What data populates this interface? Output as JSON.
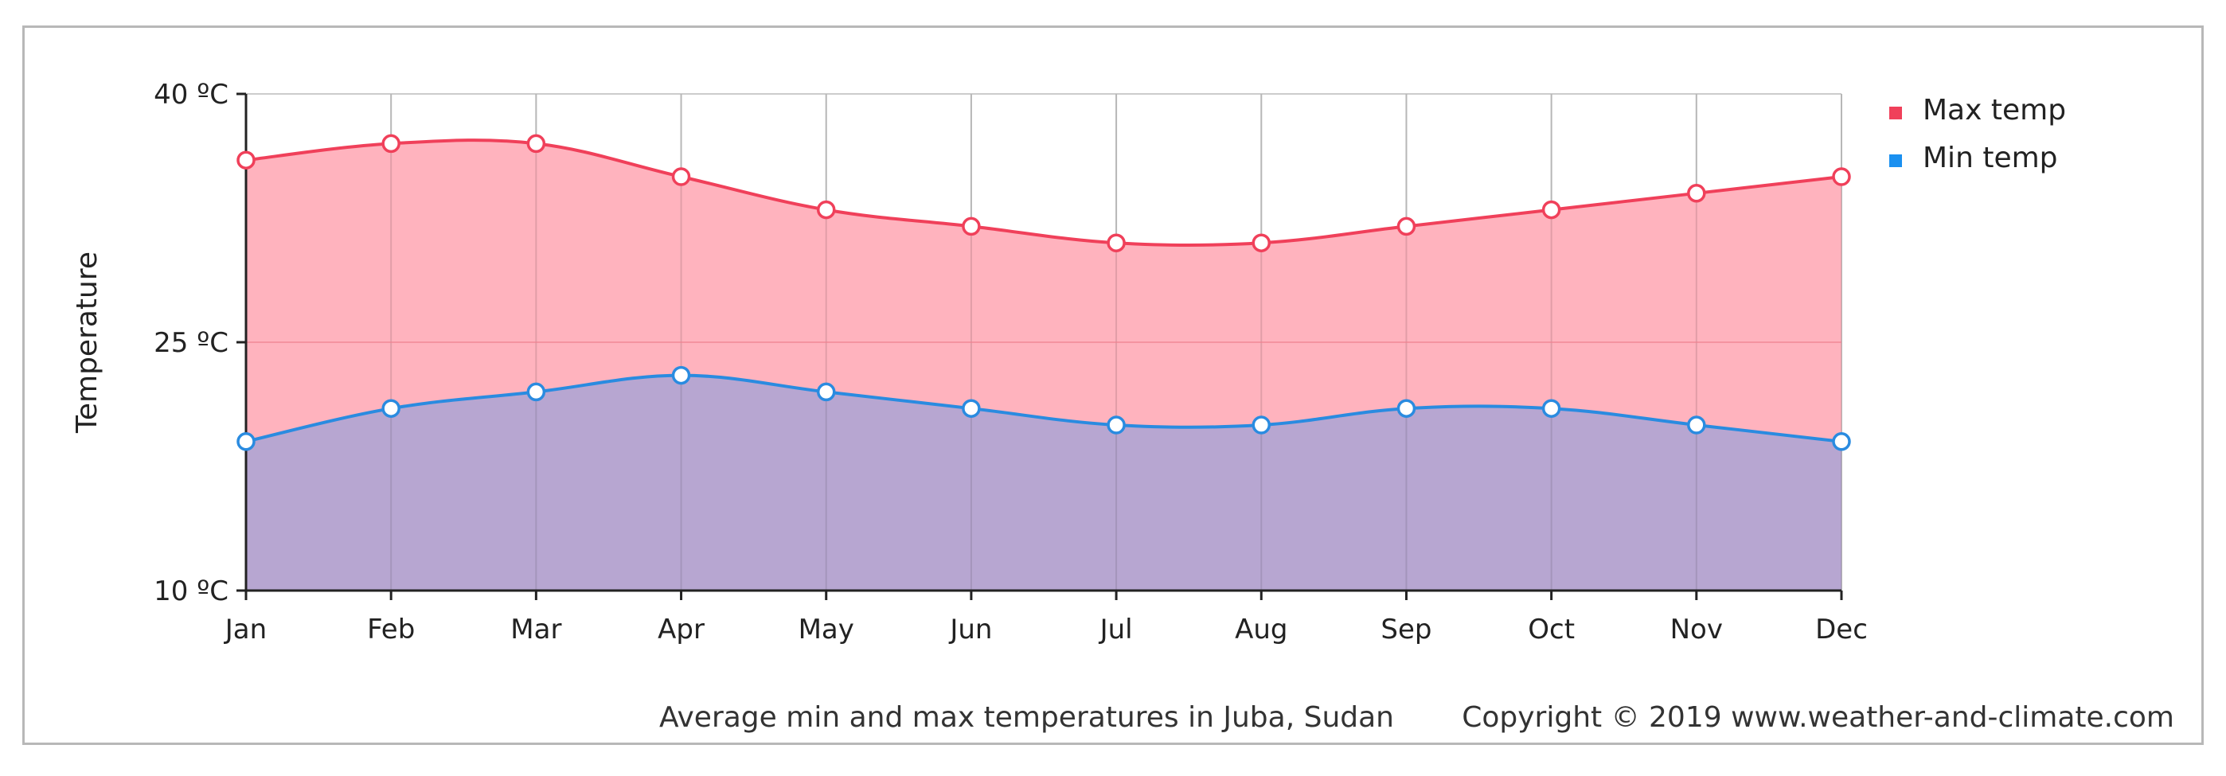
{
  "chart_data": {
    "type": "area",
    "categories": [
      "Jan",
      "Feb",
      "Mar",
      "Apr",
      "May",
      "Jun",
      "Jul",
      "Aug",
      "Sep",
      "Oct",
      "Nov",
      "Dec"
    ],
    "series": [
      {
        "name": "Max temp",
        "values": [
          36,
          37,
          37,
          35,
          33,
          32,
          31,
          31,
          32,
          33,
          34,
          35
        ],
        "line_color": "#f0405a",
        "fill_color": "#ffadb9"
      },
      {
        "name": "Min temp",
        "values": [
          19,
          21,
          22,
          23,
          22,
          21,
          20,
          20,
          21,
          21,
          20,
          19
        ],
        "line_color": "#2a8be0",
        "fill_color": "#b1a5d2"
      }
    ],
    "ylabel": "Temperature",
    "ylim": [
      10,
      40
    ],
    "yticks": [
      {
        "value": 40,
        "label": "40 ºC"
      },
      {
        "value": 25,
        "label": "25 ºC"
      },
      {
        "value": 10,
        "label": "10 ºC"
      }
    ],
    "grid": true,
    "legend_position": "top-right",
    "legend_marker_colors": [
      "#f0405a",
      "#1a90f0"
    ],
    "caption": "Average min and max temperatures in Juba, Sudan",
    "copyright": "Copyright © 2019 www.weather-and-climate.com"
  }
}
